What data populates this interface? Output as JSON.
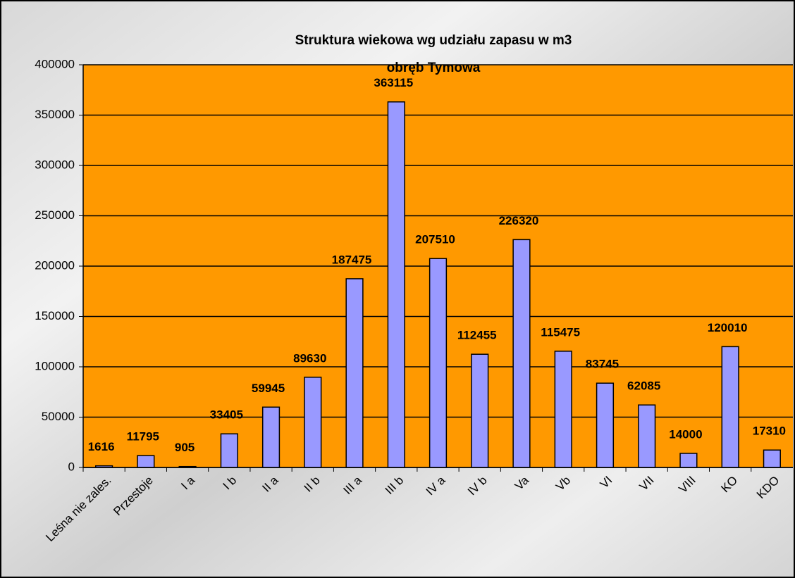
{
  "chart_data": {
    "type": "bar",
    "title": "Struktura wiekowa wg udziału zapasu w m3",
    "subtitle": "obręb Tymowa",
    "categories": [
      "Leśna nie zales.",
      "Przestoje",
      "I a",
      "I b",
      "II a",
      "II b",
      "III a",
      "III b",
      "IV a",
      "IV b",
      "Va",
      "Vb",
      "VI",
      "VII",
      "VIII",
      "KO",
      "KDO"
    ],
    "values": [
      1616,
      11795,
      905,
      33405,
      59945,
      89630,
      187475,
      363115,
      207510,
      112455,
      226320,
      115475,
      83745,
      62085,
      14000,
      120010,
      17310
    ],
    "color": "#9999ff",
    "ylim": [
      0,
      400000
    ],
    "yticks": [
      0,
      50000,
      100000,
      150000,
      200000,
      250000,
      300000,
      350000,
      400000
    ],
    "grid": true
  }
}
